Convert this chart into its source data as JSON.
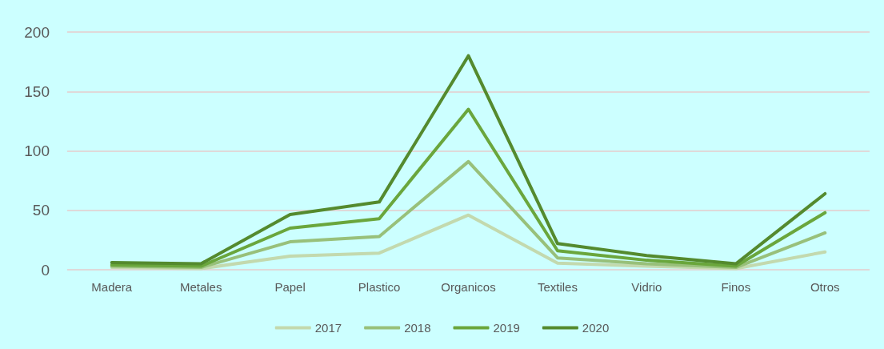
{
  "chart_data": {
    "type": "line",
    "categories": [
      "Madera",
      "Metales",
      "Papel",
      "Plastico",
      "Organicos",
      "Textiles",
      "Vidrio",
      "Finos",
      "Otros"
    ],
    "series": [
      {
        "name": "2017",
        "color": "#c3d9ae",
        "values": [
          2,
          1,
          11.5,
          14,
          46,
          5.5,
          3,
          1,
          15
        ]
      },
      {
        "name": "2018",
        "color": "#98c07a",
        "values": [
          3,
          2,
          23.5,
          28,
          91,
          10,
          5,
          2,
          31
        ]
      },
      {
        "name": "2019",
        "color": "#6aa63c",
        "values": [
          4,
          3,
          35,
          43,
          135,
          16,
          8,
          3,
          48
        ]
      },
      {
        "name": "2020",
        "color": "#548a2e",
        "values": [
          6,
          5,
          46.5,
          57,
          180,
          22,
          12,
          5,
          64
        ]
      }
    ],
    "ylim": [
      0,
      200
    ],
    "yticks": [
      0,
      50,
      100,
      150,
      200
    ],
    "grid": "y",
    "legend": "bottom",
    "marker": "none",
    "line_style": "solid"
  }
}
